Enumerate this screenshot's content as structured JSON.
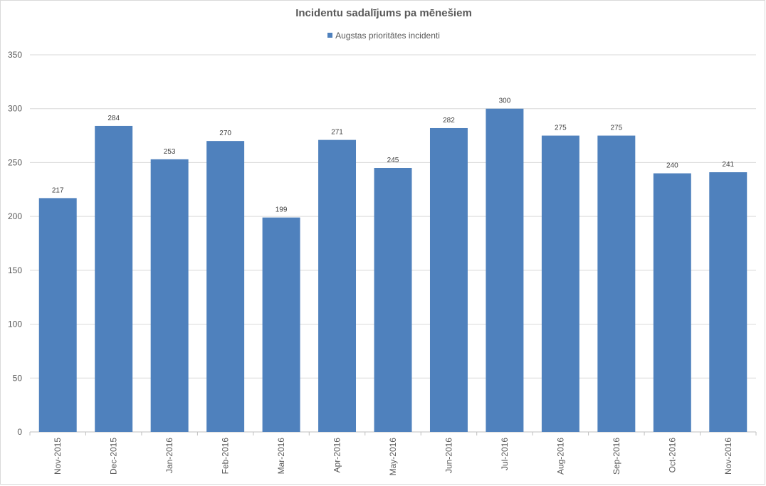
{
  "chart_data": {
    "type": "bar",
    "title": "Incidentu sadalījums pa mēnešiem",
    "categories": [
      "Nov-2015",
      "Dec-2015",
      "Jan-2016",
      "Feb-2016",
      "Mar-2016",
      "Apr-2016",
      "May-2016",
      "Jun-2016",
      "Jul-2016",
      "Aug-2016",
      "Sep-2016",
      "Oct-2016",
      "Nov-2016"
    ],
    "series": [
      {
        "name": "Augstas prioritātes incidenti",
        "color": "#4f81bd",
        "values": [
          217,
          284,
          253,
          270,
          199,
          271,
          245,
          282,
          300,
          275,
          275,
          240,
          241
        ]
      }
    ],
    "ylim": [
      0,
      350
    ],
    "yticks": [
      0,
      50,
      100,
      150,
      200,
      250,
      300,
      350
    ],
    "xlabel": "",
    "ylabel": "",
    "grid": true,
    "legend_position": "top",
    "data_labels": true
  }
}
